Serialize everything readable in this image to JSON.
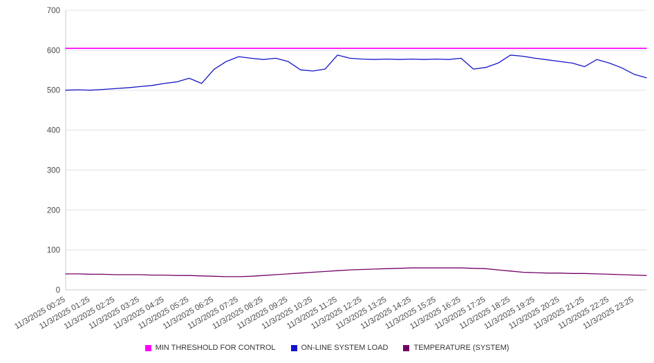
{
  "chart_data": {
    "type": "line",
    "title": "",
    "xlabel": "",
    "ylabel": "",
    "ylim": [
      0,
      700
    ],
    "y_ticks": [
      0,
      100,
      200,
      300,
      400,
      500,
      600,
      700
    ],
    "grid": "horizontal",
    "legend_position": "bottom-center",
    "x_hours_span": 23.5,
    "x_tick_hours": [
      0,
      1,
      2,
      3,
      4,
      5,
      6,
      7,
      8,
      9,
      10,
      11,
      12,
      13,
      14,
      15,
      16,
      17,
      18,
      19,
      20,
      21,
      22,
      23
    ],
    "x_tick_labels": [
      "11/3/2025 00:25",
      "11/3/2025 01:25",
      "11/3/2025 02:25",
      "11/3/2025 03:25",
      "11/3/2025 04:25",
      "11/3/2025 05:25",
      "11/3/2025 06:25",
      "11/3/2025 07:25",
      "11/3/2025 08:25",
      "11/3/2025 09:25",
      "11/3/2025 10:25",
      "11/3/2025 11:25",
      "11/3/2025 12:25",
      "11/3/2025 13:25",
      "11/3/2025 14:25",
      "11/3/2025 15:25",
      "11/3/2025 16:25",
      "11/3/2025 17:25",
      "11/3/2025 18:25",
      "11/3/2025 19:25",
      "11/3/2025 20:25",
      "11/3/2025 21:25",
      "11/3/2025 22:25",
      "11/3/2025 23:25"
    ],
    "sample_interval_hours": 0.5,
    "series": [
      {
        "name": "MIN THRESHOLD FOR CONTROL",
        "color": "#ff00ff",
        "kind": "constant",
        "value": 605
      },
      {
        "name": "ON-LINE SYSTEM LOAD",
        "color": "#1414c8",
        "kind": "values",
        "values": [
          500,
          501,
          500,
          502,
          504,
          506,
          509,
          512,
          517,
          521,
          530,
          517,
          552,
          572,
          584,
          580,
          577,
          580,
          572,
          551,
          548,
          553,
          588,
          580,
          578,
          577,
          578,
          577,
          578,
          577,
          578,
          577,
          580,
          553,
          557,
          568,
          588,
          585,
          580,
          576,
          572,
          568,
          559,
          577,
          568,
          556,
          540,
          531
        ]
      },
      {
        "name": "TEMPERATURE (SYSTEM)",
        "color": "#730067",
        "kind": "values",
        "values": [
          40,
          40,
          39,
          39,
          38,
          38,
          38,
          37,
          37,
          36,
          36,
          35,
          34,
          33,
          33,
          34,
          36,
          38,
          40,
          42,
          44,
          46,
          48,
          50,
          51,
          52,
          53,
          54,
          55,
          55,
          55,
          55,
          55,
          54,
          53,
          50,
          47,
          44,
          43,
          42,
          42,
          41,
          41,
          40,
          39,
          38,
          37,
          36
        ]
      }
    ],
    "style": {
      "grid_color": "#e0e0e0",
      "axis_color": "#c8c8c8",
      "tick_text_color": "#4a4a4a",
      "background": "#ffffff"
    }
  }
}
